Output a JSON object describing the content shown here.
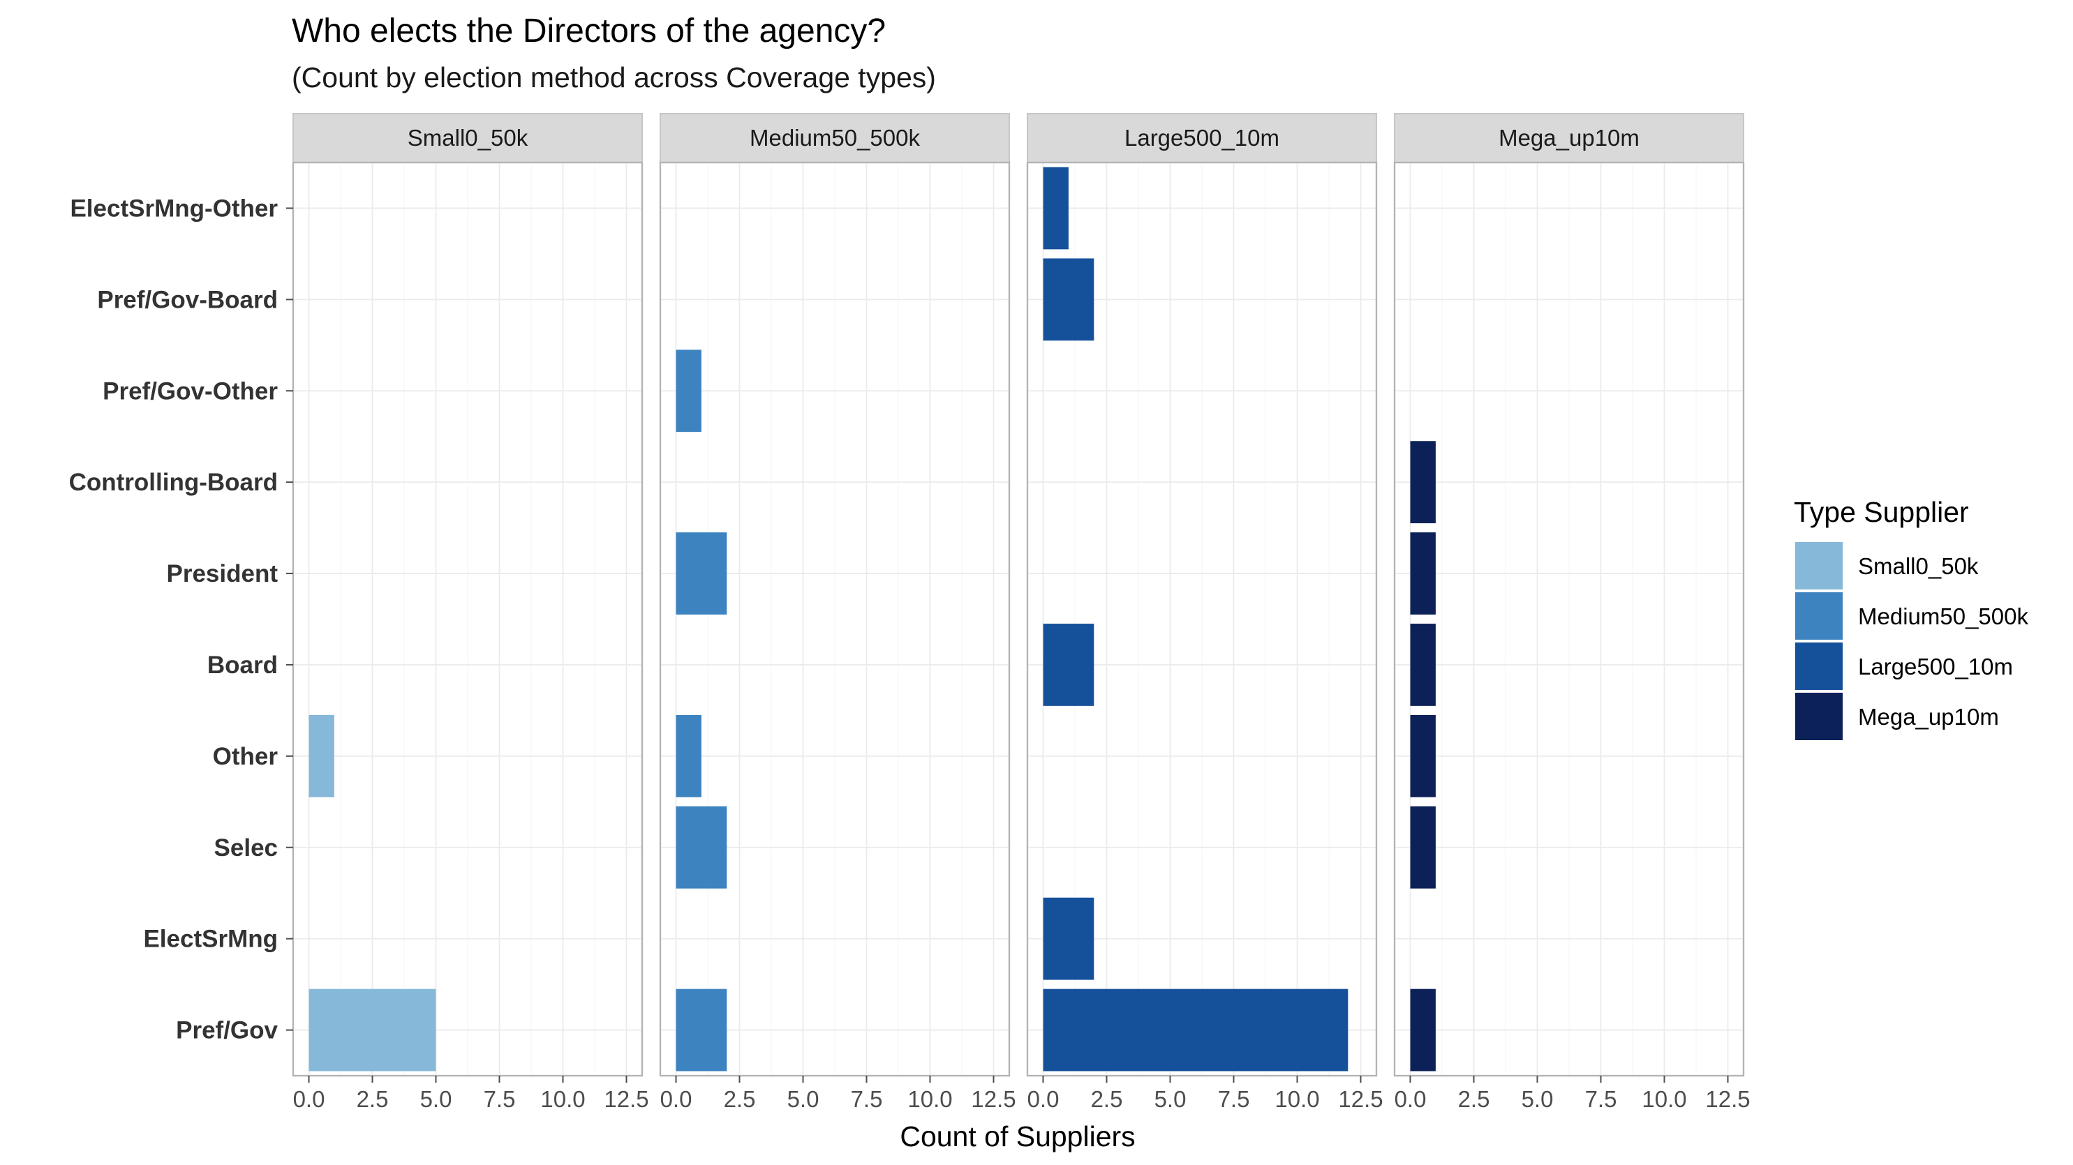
{
  "chart_data": {
    "type": "bar",
    "orientation": "horizontal",
    "title": "Who elects the Directors of the agency?",
    "subtitle": "(Count by election method across Coverage types)",
    "xlabel": "Count of Suppliers",
    "ylabel": "",
    "xlim": [
      0,
      12.5
    ],
    "xticks": [
      "0.0",
      "2.5",
      "5.0",
      "7.5",
      "10.0",
      "12.5"
    ],
    "grid": true,
    "categories": [
      "ElectSrMng-Other",
      "Pref/Gov-Board",
      "Pref/Gov-Other",
      "Controlling-Board",
      "President",
      "Board",
      "Other",
      "Selec",
      "ElectSrMng",
      "Pref/Gov"
    ],
    "facets": [
      {
        "name": "Small0_50k",
        "color": "#85b8d9",
        "values": {
          "Other": 1,
          "Pref/Gov": 5
        }
      },
      {
        "name": "Medium50_500k",
        "color": "#3d83bf",
        "values": {
          "Pref/Gov-Other": 1,
          "President": 2,
          "Other": 1,
          "Selec": 2,
          "Pref/Gov": 2
        }
      },
      {
        "name": "Large500_10m",
        "color": "#15509b",
        "values": {
          "ElectSrMng-Other": 1,
          "Pref/Gov-Board": 2,
          "Board": 2,
          "ElectSrMng": 2,
          "Pref/Gov": 12
        }
      },
      {
        "name": "Mega_up10m",
        "color": "#0c2157",
        "values": {
          "Controlling-Board": 1,
          "President": 1,
          "Board": 1,
          "Other": 1,
          "Selec": 1,
          "Pref/Gov": 1
        }
      }
    ],
    "legend": {
      "title": "Type Supplier",
      "position": "right",
      "entries": [
        "Small0_50k",
        "Medium50_500k",
        "Large500_10m",
        "Mega_up10m"
      ]
    }
  }
}
